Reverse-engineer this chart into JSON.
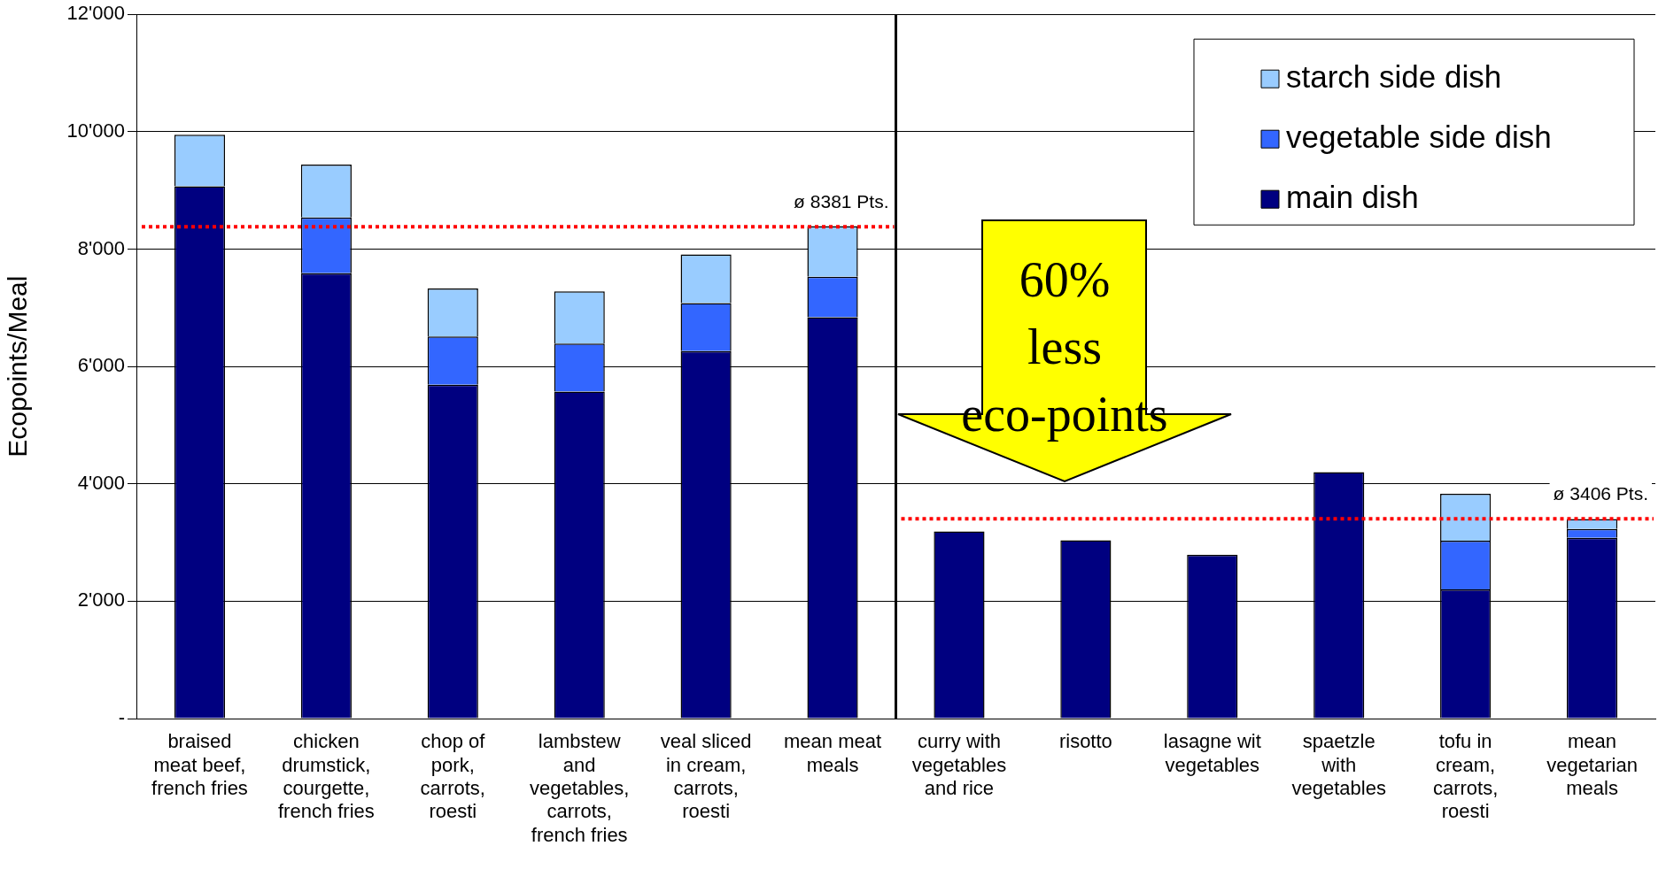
{
  "chart_data": {
    "type": "bar",
    "stacked": true,
    "ylabel": "Ecopoints/Meal",
    "categories": [
      "braised meat beef, french fries",
      "chicken drumstick, courgette, french fries",
      "chop of pork, carrots, roesti",
      "lambstew and vegetables, carrots, french fries",
      "veal sliced in cream, carrots, roesti",
      "mean meat meals",
      "curry with vegetables and rice",
      "risotto",
      "lasagne wit vegetables",
      "spaetzle with vegetables",
      "tofu in cream, carrots, roesti",
      "mean vegetarian meals"
    ],
    "series": [
      {
        "name": "main dish",
        "color": "#000080",
        "values": [
          9070,
          7590,
          5690,
          5570,
          6260,
          6840,
          3190,
          3040,
          2790,
          4200,
          2200,
          3080
        ]
      },
      {
        "name": "vegetable side dish",
        "color": "#3366ff",
        "values": [
          0,
          950,
          820,
          820,
          820,
          690,
          0,
          0,
          0,
          0,
          830,
          150
        ]
      },
      {
        "name": "starch side dish",
        "color": "#99ccff",
        "values": [
          880,
          900,
          820,
          890,
          830,
          860,
          0,
          0,
          0,
          0,
          800,
          170
        ]
      }
    ],
    "ylim": [
      0,
      12000
    ],
    "yticks": [
      {
        "value": 0,
        "label": "-"
      },
      {
        "value": 2000,
        "label": "2'000"
      },
      {
        "value": 4000,
        "label": "4'000"
      },
      {
        "value": 6000,
        "label": "6'000"
      },
      {
        "value": 8000,
        "label": "8'000"
      },
      {
        "value": 10000,
        "label": "10'000"
      },
      {
        "value": 12000,
        "label": "12'000"
      }
    ],
    "grid": "y",
    "legend": "top right",
    "ref_lines": [
      {
        "axis": "y",
        "value": 8381,
        "label": "ø 8381 Pts.",
        "color": "#ff0000",
        "line_style": "dotted"
      },
      {
        "axis": "y",
        "value": 3406,
        "label": "ø 3406 Pts.",
        "color": "#ff0000",
        "line_style": "dotted"
      }
    ],
    "annotations": [
      "60% less eco-points"
    ]
  }
}
